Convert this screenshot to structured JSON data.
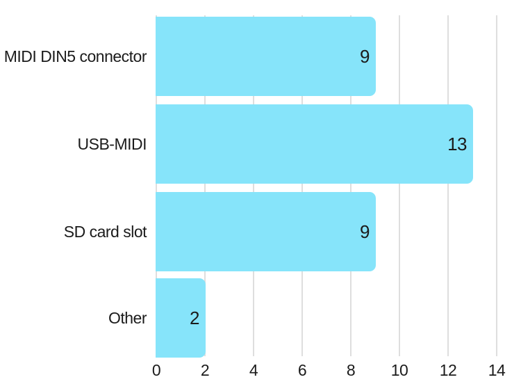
{
  "chart_data": {
    "type": "bar",
    "orientation": "horizontal",
    "title": "",
    "categories": [
      "MIDI DIN5 connector",
      "USB-MIDI",
      "SD card slot",
      "Other"
    ],
    "values": [
      9,
      13,
      9,
      2
    ],
    "value_labels": [
      "9",
      "13",
      "9",
      "2"
    ],
    "x_ticks": [
      0,
      2,
      4,
      6,
      8,
      10,
      12,
      14
    ],
    "xlim": [
      0,
      14.5
    ],
    "xlabel": "",
    "ylabel": "",
    "grid": true,
    "legend_position": "none",
    "colors": {
      "bar": "#86e4fa",
      "gridline": "#dedede",
      "text": "#1b1b1b",
      "background": "#ffffff"
    }
  }
}
